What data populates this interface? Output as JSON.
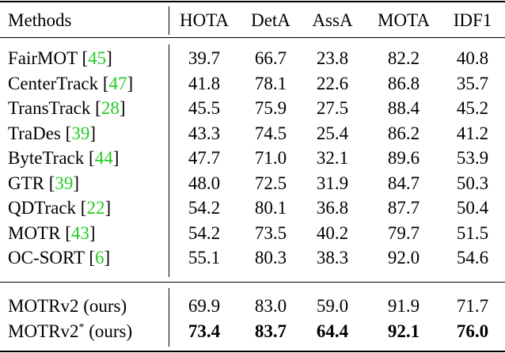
{
  "table": {
    "header": [
      "Methods",
      "HOTA",
      "DetA",
      "AssA",
      "MOTA",
      "IDF1"
    ],
    "groups": [
      [
        {
          "name": "FairMOT",
          "ref": "[45]",
          "values": [
            "39.7",
            "66.7",
            "23.8",
            "82.2",
            "40.8"
          ]
        },
        {
          "name": "CenterTrack",
          "ref": "[47]",
          "values": [
            "41.8",
            "78.1",
            "22.6",
            "86.8",
            "35.7"
          ]
        },
        {
          "name": "TransTrack",
          "ref": "[28]",
          "values": [
            "45.5",
            "75.9",
            "27.5",
            "88.4",
            "45.2"
          ]
        },
        {
          "name": "TraDes",
          "ref": "[39]",
          "values": [
            "43.3",
            "74.5",
            "25.4",
            "86.2",
            "41.2"
          ]
        },
        {
          "name": "ByteTrack",
          "ref": "[44]",
          "values": [
            "47.7",
            "71.0",
            "32.1",
            "89.6",
            "53.9"
          ]
        },
        {
          "name": "GTR",
          "ref": "[39]",
          "values": [
            "48.0",
            "72.5",
            "31.9",
            "84.7",
            "50.3"
          ]
        },
        {
          "name": "QDTrack",
          "ref": "[22]",
          "values": [
            "54.2",
            "80.1",
            "36.8",
            "87.7",
            "50.4"
          ]
        },
        {
          "name": "MOTR",
          "ref": "[43]",
          "values": [
            "54.2",
            "73.5",
            "40.2",
            "79.7",
            "51.5"
          ]
        },
        {
          "name": "OC-SORT",
          "ref": "[6]",
          "values": [
            "55.1",
            "80.3",
            "38.3",
            "92.0",
            "54.6"
          ]
        }
      ],
      [
        {
          "name": "MOTRv2",
          "note": "(ours)",
          "values": [
            "69.9",
            "83.0",
            "59.0",
            "91.9",
            "71.7"
          ]
        },
        {
          "name": "MOTRv2",
          "sup": "*",
          "note": "(ours)",
          "values": [
            "73.4",
            "83.7",
            "64.4",
            "92.1",
            "76.0"
          ],
          "bold": true
        }
      ]
    ]
  }
}
